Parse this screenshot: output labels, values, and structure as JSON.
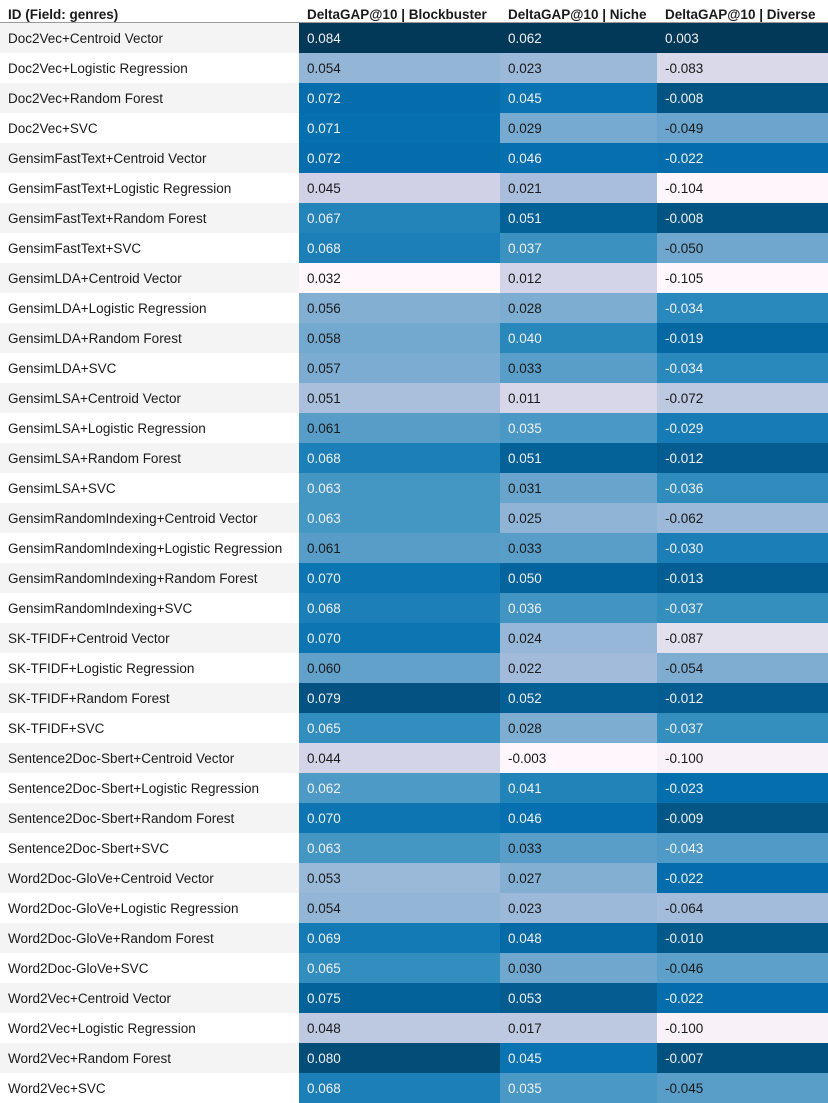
{
  "chart_data": {
    "type": "table",
    "title": "",
    "columns": [
      "ID (Field: genres)",
      "DeltaGAP@10 | Blockbuster",
      "DeltaGAP@10 | Niche",
      "DeltaGAP@10 | Diverse"
    ],
    "colormap": "PuBu",
    "rows": [
      {
        "id": "Doc2Vec+Centroid Vector",
        "values": [
          "0.084",
          "0.062",
          "0.003"
        ]
      },
      {
        "id": "Doc2Vec+Logistic Regression",
        "values": [
          "0.054",
          "0.023",
          "-0.083"
        ]
      },
      {
        "id": "Doc2Vec+Random Forest",
        "values": [
          "0.072",
          "0.045",
          "-0.008"
        ]
      },
      {
        "id": "Doc2Vec+SVC",
        "values": [
          "0.071",
          "0.029",
          "-0.049"
        ]
      },
      {
        "id": "GensimFastText+Centroid Vector",
        "values": [
          "0.072",
          "0.046",
          "-0.022"
        ]
      },
      {
        "id": "GensimFastText+Logistic Regression",
        "values": [
          "0.045",
          "0.021",
          "-0.104"
        ]
      },
      {
        "id": "GensimFastText+Random Forest",
        "values": [
          "0.067",
          "0.051",
          "-0.008"
        ]
      },
      {
        "id": "GensimFastText+SVC",
        "values": [
          "0.068",
          "0.037",
          "-0.050"
        ]
      },
      {
        "id": "GensimLDA+Centroid Vector",
        "values": [
          "0.032",
          "0.012",
          "-0.105"
        ]
      },
      {
        "id": "GensimLDA+Logistic Regression",
        "values": [
          "0.056",
          "0.028",
          "-0.034"
        ]
      },
      {
        "id": "GensimLDA+Random Forest",
        "values": [
          "0.058",
          "0.040",
          "-0.019"
        ]
      },
      {
        "id": "GensimLDA+SVC",
        "values": [
          "0.057",
          "0.033",
          "-0.034"
        ]
      },
      {
        "id": "GensimLSA+Centroid Vector",
        "values": [
          "0.051",
          "0.011",
          "-0.072"
        ]
      },
      {
        "id": "GensimLSA+Logistic Regression",
        "values": [
          "0.061",
          "0.035",
          "-0.029"
        ]
      },
      {
        "id": "GensimLSA+Random Forest",
        "values": [
          "0.068",
          "0.051",
          "-0.012"
        ]
      },
      {
        "id": "GensimLSA+SVC",
        "values": [
          "0.063",
          "0.031",
          "-0.036"
        ]
      },
      {
        "id": "GensimRandomIndexing+Centroid Vector",
        "values": [
          "0.063",
          "0.025",
          "-0.062"
        ]
      },
      {
        "id": "GensimRandomIndexing+Logistic Regression",
        "values": [
          "0.061",
          "0.033",
          "-0.030"
        ]
      },
      {
        "id": "GensimRandomIndexing+Random Forest",
        "values": [
          "0.070",
          "0.050",
          "-0.013"
        ]
      },
      {
        "id": "GensimRandomIndexing+SVC",
        "values": [
          "0.068",
          "0.036",
          "-0.037"
        ]
      },
      {
        "id": "SK-TFIDF+Centroid Vector",
        "values": [
          "0.070",
          "0.024",
          "-0.087"
        ]
      },
      {
        "id": "SK-TFIDF+Logistic Regression",
        "values": [
          "0.060",
          "0.022",
          "-0.054"
        ]
      },
      {
        "id": "SK-TFIDF+Random Forest",
        "values": [
          "0.079",
          "0.052",
          "-0.012"
        ]
      },
      {
        "id": "SK-TFIDF+SVC",
        "values": [
          "0.065",
          "0.028",
          "-0.037"
        ]
      },
      {
        "id": "Sentence2Doc-Sbert+Centroid Vector",
        "values": [
          "0.044",
          "-0.003",
          "-0.100"
        ]
      },
      {
        "id": "Sentence2Doc-Sbert+Logistic Regression",
        "values": [
          "0.062",
          "0.041",
          "-0.023"
        ]
      },
      {
        "id": "Sentence2Doc-Sbert+Random Forest",
        "values": [
          "0.070",
          "0.046",
          "-0.009"
        ]
      },
      {
        "id": "Sentence2Doc-Sbert+SVC",
        "values": [
          "0.063",
          "0.033",
          "-0.043"
        ]
      },
      {
        "id": "Word2Doc-GloVe+Centroid Vector",
        "values": [
          "0.053",
          "0.027",
          "-0.022"
        ]
      },
      {
        "id": "Word2Doc-GloVe+Logistic Regression",
        "values": [
          "0.054",
          "0.023",
          "-0.064"
        ]
      },
      {
        "id": "Word2Doc-GloVe+Random Forest",
        "values": [
          "0.069",
          "0.048",
          "-0.010"
        ]
      },
      {
        "id": "Word2Doc-GloVe+SVC",
        "values": [
          "0.065",
          "0.030",
          "-0.046"
        ]
      },
      {
        "id": "Word2Vec+Centroid Vector",
        "values": [
          "0.075",
          "0.053",
          "-0.022"
        ]
      },
      {
        "id": "Word2Vec+Logistic Regression",
        "values": [
          "0.048",
          "0.017",
          "-0.100"
        ]
      },
      {
        "id": "Word2Vec+Random Forest",
        "values": [
          "0.080",
          "0.045",
          "-0.007"
        ]
      },
      {
        "id": "Word2Vec+SVC",
        "values": [
          "0.068",
          "0.035",
          "-0.045"
        ]
      }
    ]
  }
}
